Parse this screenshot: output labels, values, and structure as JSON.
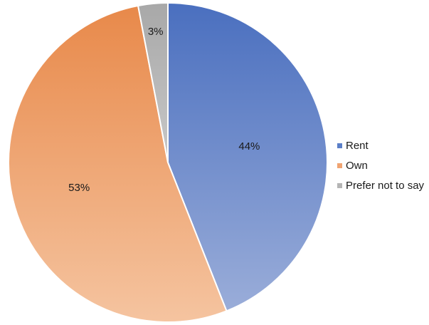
{
  "chart_data": {
    "type": "pie",
    "title": "",
    "categories": [
      "Rent",
      "Own",
      "Prefer not to say"
    ],
    "values": [
      44,
      53,
      3
    ],
    "value_labels": [
      "44%",
      "53%",
      "3%"
    ],
    "colors": [
      "#5b7fc8",
      "#f0a472",
      "#b5b5b5"
    ],
    "start_angle_deg": 0,
    "direction": "clockwise",
    "legend": {
      "position": "right",
      "entries": [
        "Rent",
        "Own",
        "Prefer not to say"
      ]
    }
  }
}
